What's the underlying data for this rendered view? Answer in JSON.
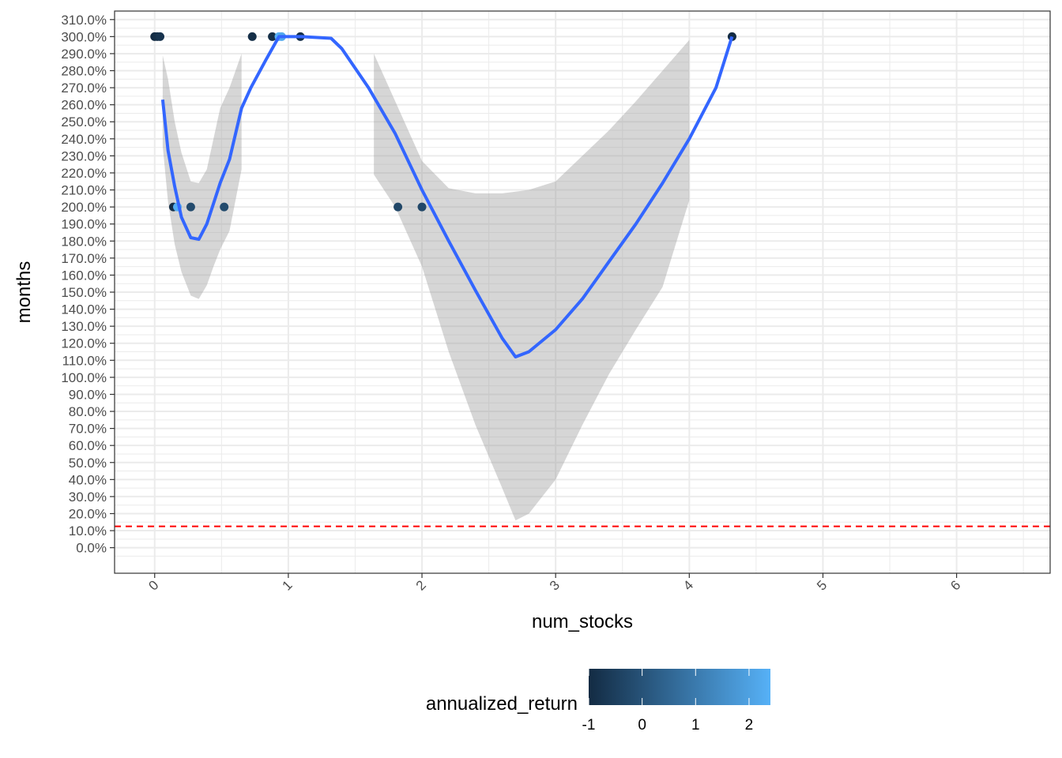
{
  "chart_data": {
    "type": "scatter",
    "xlabel": "num_stocks",
    "ylabel": "months",
    "x_ticks": [
      0,
      1,
      2,
      3,
      4,
      5,
      6
    ],
    "x_tick_labels": [
      "0",
      "1",
      "2",
      "3",
      "4",
      "5",
      "6"
    ],
    "xlim": [
      -0.3,
      6.7
    ],
    "y_ticks": [
      0,
      10,
      20,
      30,
      40,
      50,
      60,
      70,
      80,
      90,
      100,
      110,
      120,
      130,
      140,
      150,
      160,
      170,
      180,
      190,
      200,
      210,
      220,
      230,
      240,
      250,
      260,
      270,
      280,
      290,
      300,
      310
    ],
    "y_tick_labels": [
      "0.0%",
      "10.0%",
      "20.0%",
      "30.0%",
      "40.0%",
      "50.0%",
      "60.0%",
      "70.0%",
      "80.0%",
      "90.0%",
      "100.0%",
      "110.0%",
      "120.0%",
      "130.0%",
      "140.0%",
      "150.0%",
      "160.0%",
      "170.0%",
      "180.0%",
      "190.0%",
      "200.0%",
      "210.0%",
      "220.0%",
      "230.0%",
      "240.0%",
      "250.0%",
      "260.0%",
      "270.0%",
      "280.0%",
      "290.0%",
      "300.0%",
      "310.0%"
    ],
    "ylim": [
      -15,
      315
    ],
    "grid": true,
    "points": [
      {
        "x": 0.0,
        "y": 300,
        "c": -1.0
      },
      {
        "x": 0.02,
        "y": 300,
        "c": -0.9
      },
      {
        "x": 0.04,
        "y": 300,
        "c": -0.8
      },
      {
        "x": 0.14,
        "y": 200,
        "c": -0.9
      },
      {
        "x": 0.17,
        "y": 200,
        "c": 2.3
      },
      {
        "x": 0.27,
        "y": 200,
        "c": -0.2
      },
      {
        "x": 0.52,
        "y": 200,
        "c": -0.2
      },
      {
        "x": 0.73,
        "y": 300,
        "c": -0.9
      },
      {
        "x": 0.88,
        "y": 300,
        "c": -0.9
      },
      {
        "x": 0.93,
        "y": 300,
        "c": 2.4
      },
      {
        "x": 0.95,
        "y": 300,
        "c": 2.2
      },
      {
        "x": 1.09,
        "y": 300,
        "c": -0.9
      },
      {
        "x": 1.82,
        "y": 200,
        "c": -0.3
      },
      {
        "x": 2.0,
        "y": 200,
        "c": -0.3
      },
      {
        "x": 4.32,
        "y": 300,
        "c": -1.0
      }
    ],
    "smooth_segments": [
      {
        "line": [
          [
            0.06,
            263
          ],
          [
            0.1,
            233
          ],
          [
            0.15,
            212
          ],
          [
            0.2,
            194
          ],
          [
            0.27,
            182
          ],
          [
            0.33,
            181
          ],
          [
            0.39,
            190
          ],
          [
            0.44,
            202
          ],
          [
            0.49,
            214
          ],
          [
            0.56,
            228
          ],
          [
            0.65,
            258
          ],
          [
            0.72,
            270
          ],
          [
            0.83,
            286
          ],
          [
            0.93,
            300
          ],
          [
            1.1,
            300
          ],
          [
            1.32,
            299
          ],
          [
            1.4,
            293
          ],
          [
            1.6,
            270
          ],
          [
            1.8,
            243
          ],
          [
            2.0,
            210
          ],
          [
            2.2,
            180
          ],
          [
            2.4,
            151
          ],
          [
            2.6,
            123
          ],
          [
            2.7,
            112
          ],
          [
            2.8,
            115
          ],
          [
            3.0,
            128
          ],
          [
            3.2,
            146
          ],
          [
            3.4,
            168
          ],
          [
            3.6,
            190
          ],
          [
            3.8,
            214
          ],
          [
            4.0,
            240
          ],
          [
            4.2,
            270
          ],
          [
            4.32,
            300
          ]
        ],
        "ribbon": [
          [
            0.06,
            289,
            236
          ],
          [
            0.1,
            275,
            203
          ],
          [
            0.15,
            250,
            178
          ],
          [
            0.2,
            232,
            162
          ],
          [
            0.27,
            215,
            148
          ],
          [
            0.33,
            214,
            146
          ],
          [
            0.39,
            222,
            154
          ],
          [
            0.44,
            240,
            165
          ],
          [
            0.49,
            258,
            175
          ],
          [
            0.56,
            270,
            186
          ],
          [
            0.65,
            290,
            222
          ]
        ]
      },
      {
        "ribbon": [
          [
            1.64,
            290,
            219
          ],
          [
            1.8,
            262,
            200
          ],
          [
            2.0,
            227,
            165
          ],
          [
            2.2,
            211,
            115
          ],
          [
            2.4,
            208,
            72
          ],
          [
            2.6,
            208,
            35
          ],
          [
            2.7,
            209,
            16
          ],
          [
            2.8,
            210,
            20
          ],
          [
            3.0,
            215,
            40
          ],
          [
            3.2,
            230,
            72
          ],
          [
            3.4,
            245,
            102
          ],
          [
            3.6,
            262,
            128
          ],
          [
            3.8,
            280,
            153
          ],
          [
            4.0,
            298,
            204
          ]
        ]
      }
    ],
    "hline": {
      "y": 12.5,
      "color": "#ff0000",
      "style": "dashed"
    },
    "smooth_color": "#3366ff",
    "ribbon_color": "#999999",
    "legend": {
      "title": "annualized_return",
      "position": "bottom",
      "type": "colorbar",
      "min": -1,
      "max": 2.4,
      "breaks": [
        -1,
        0,
        1,
        2
      ],
      "break_labels": [
        "-1",
        "0",
        "1",
        "2"
      ],
      "low_color": "#132b43",
      "high_color": "#56b1f7"
    }
  }
}
